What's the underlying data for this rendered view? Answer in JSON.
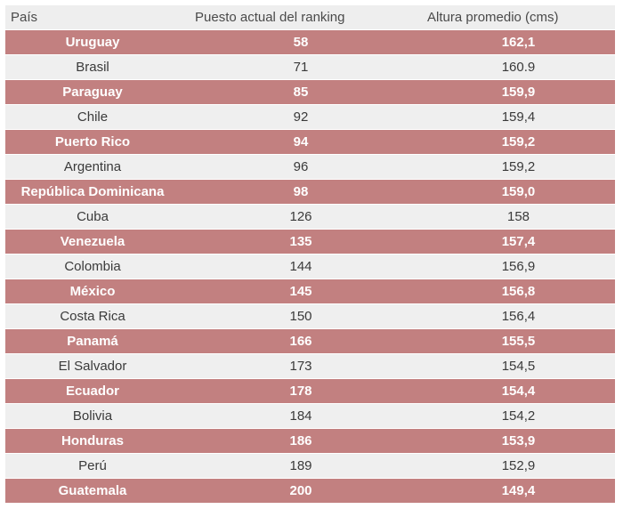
{
  "table": {
    "headers": [
      "País",
      "Puesto actual del ranking",
      "Altura promedio (cms)"
    ],
    "highlight_color": "#c28080",
    "rows": [
      {
        "pais": "Uruguay",
        "puesto": "58",
        "altura": "162,1",
        "highlight": true
      },
      {
        "pais": "Brasil",
        "puesto": "71",
        "altura": "160.9",
        "highlight": false
      },
      {
        "pais": "Paraguay",
        "puesto": "85",
        "altura": "159,9",
        "highlight": true
      },
      {
        "pais": "Chile",
        "puesto": "92",
        "altura": "159,4",
        "highlight": false
      },
      {
        "pais": "Puerto Rico",
        "puesto": "94",
        "altura": "159,2",
        "highlight": true
      },
      {
        "pais": "Argentina",
        "puesto": "96",
        "altura": "159,2",
        "highlight": false
      },
      {
        "pais": "República Dominicana",
        "puesto": "98",
        "altura": "159,0",
        "highlight": true
      },
      {
        "pais": "Cuba",
        "puesto": "126",
        "altura": "158",
        "highlight": false
      },
      {
        "pais": "Venezuela",
        "puesto": "135",
        "altura": "157,4",
        "highlight": true
      },
      {
        "pais": "Colombia",
        "puesto": "144",
        "altura": "156,9",
        "highlight": false
      },
      {
        "pais": "México",
        "puesto": "145",
        "altura": "156,8",
        "highlight": true
      },
      {
        "pais": "Costa Rica",
        "puesto": "150",
        "altura": "156,4",
        "highlight": false
      },
      {
        "pais": "Panamá",
        "puesto": "166",
        "altura": "155,5",
        "highlight": true
      },
      {
        "pais": "El Salvador",
        "puesto": "173",
        "altura": "154,5",
        "highlight": false
      },
      {
        "pais": "Ecuador",
        "puesto": "178",
        "altura": "154,4",
        "highlight": true
      },
      {
        "pais": "Bolivia",
        "puesto": "184",
        "altura": "154,2",
        "highlight": false
      },
      {
        "pais": "Honduras",
        "puesto": "186",
        "altura": "153,9",
        "highlight": true
      },
      {
        "pais": "Perú",
        "puesto": "189",
        "altura": "152,9",
        "highlight": false
      },
      {
        "pais": "Guatemala",
        "puesto": "200",
        "altura": "149,4",
        "highlight": true
      }
    ]
  }
}
